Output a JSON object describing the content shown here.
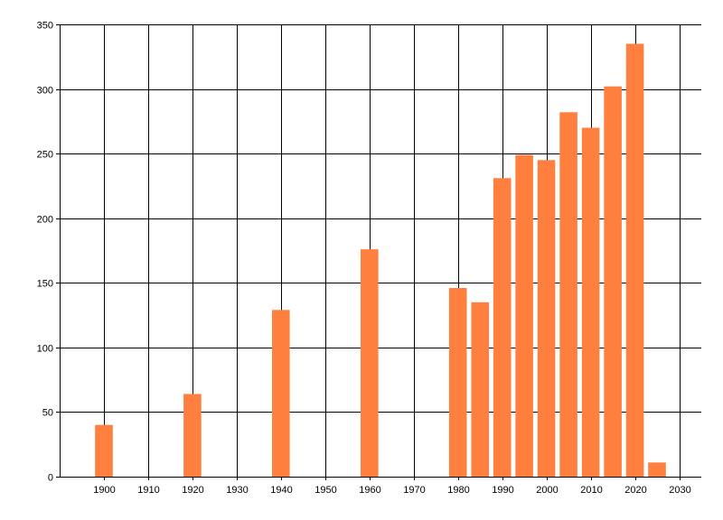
{
  "chart_data": {
    "type": "bar",
    "title": "",
    "xlabel": "",
    "ylabel": "",
    "xlim": [
      1890,
      2035
    ],
    "ylim": [
      0,
      350
    ],
    "x_ticks": [
      1900,
      1910,
      1920,
      1930,
      1940,
      1950,
      1960,
      1970,
      1980,
      1990,
      2000,
      2010,
      2020,
      2030
    ],
    "y_ticks": [
      0,
      50,
      100,
      150,
      200,
      250,
      300,
      350
    ],
    "grid": true,
    "legend": "none",
    "bar_color": "#ff7f3f",
    "x": [
      1900,
      1920,
      1940,
      1960,
      1980,
      1985,
      1990,
      1995,
      2000,
      2005,
      2010,
      2015,
      2020,
      2025
    ],
    "values": [
      40,
      64,
      129,
      176,
      146,
      135,
      231,
      249,
      245,
      282,
      270,
      302,
      335,
      11
    ]
  }
}
